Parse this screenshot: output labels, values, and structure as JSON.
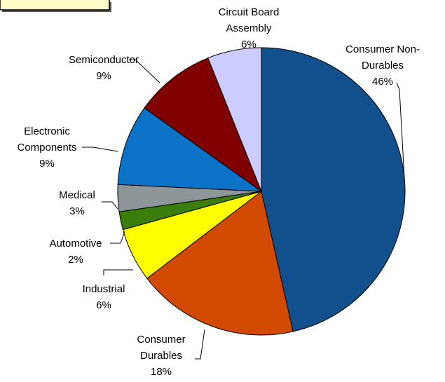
{
  "chart_data": {
    "type": "pie",
    "categories": [
      "Consumer Non-\nDurables",
      "Consumer\nDurables",
      "Industrial",
      "Automotive",
      "Medical",
      "Electronic\nComponents",
      "Semiconductor",
      "Circuit Board\nAssembly"
    ],
    "values": [
      46,
      18,
      6,
      2,
      3,
      9,
      9,
      6
    ],
    "value_labels": [
      "46%",
      "18%",
      "6%",
      "2%",
      "3%",
      "9%",
      "9%",
      "6%"
    ],
    "colors": [
      "#11508c",
      "#d24a00",
      "#ffff00",
      "#3a7d0a",
      "#8e9699",
      "#0a73c8",
      "#800000",
      "#ccccff"
    ]
  }
}
